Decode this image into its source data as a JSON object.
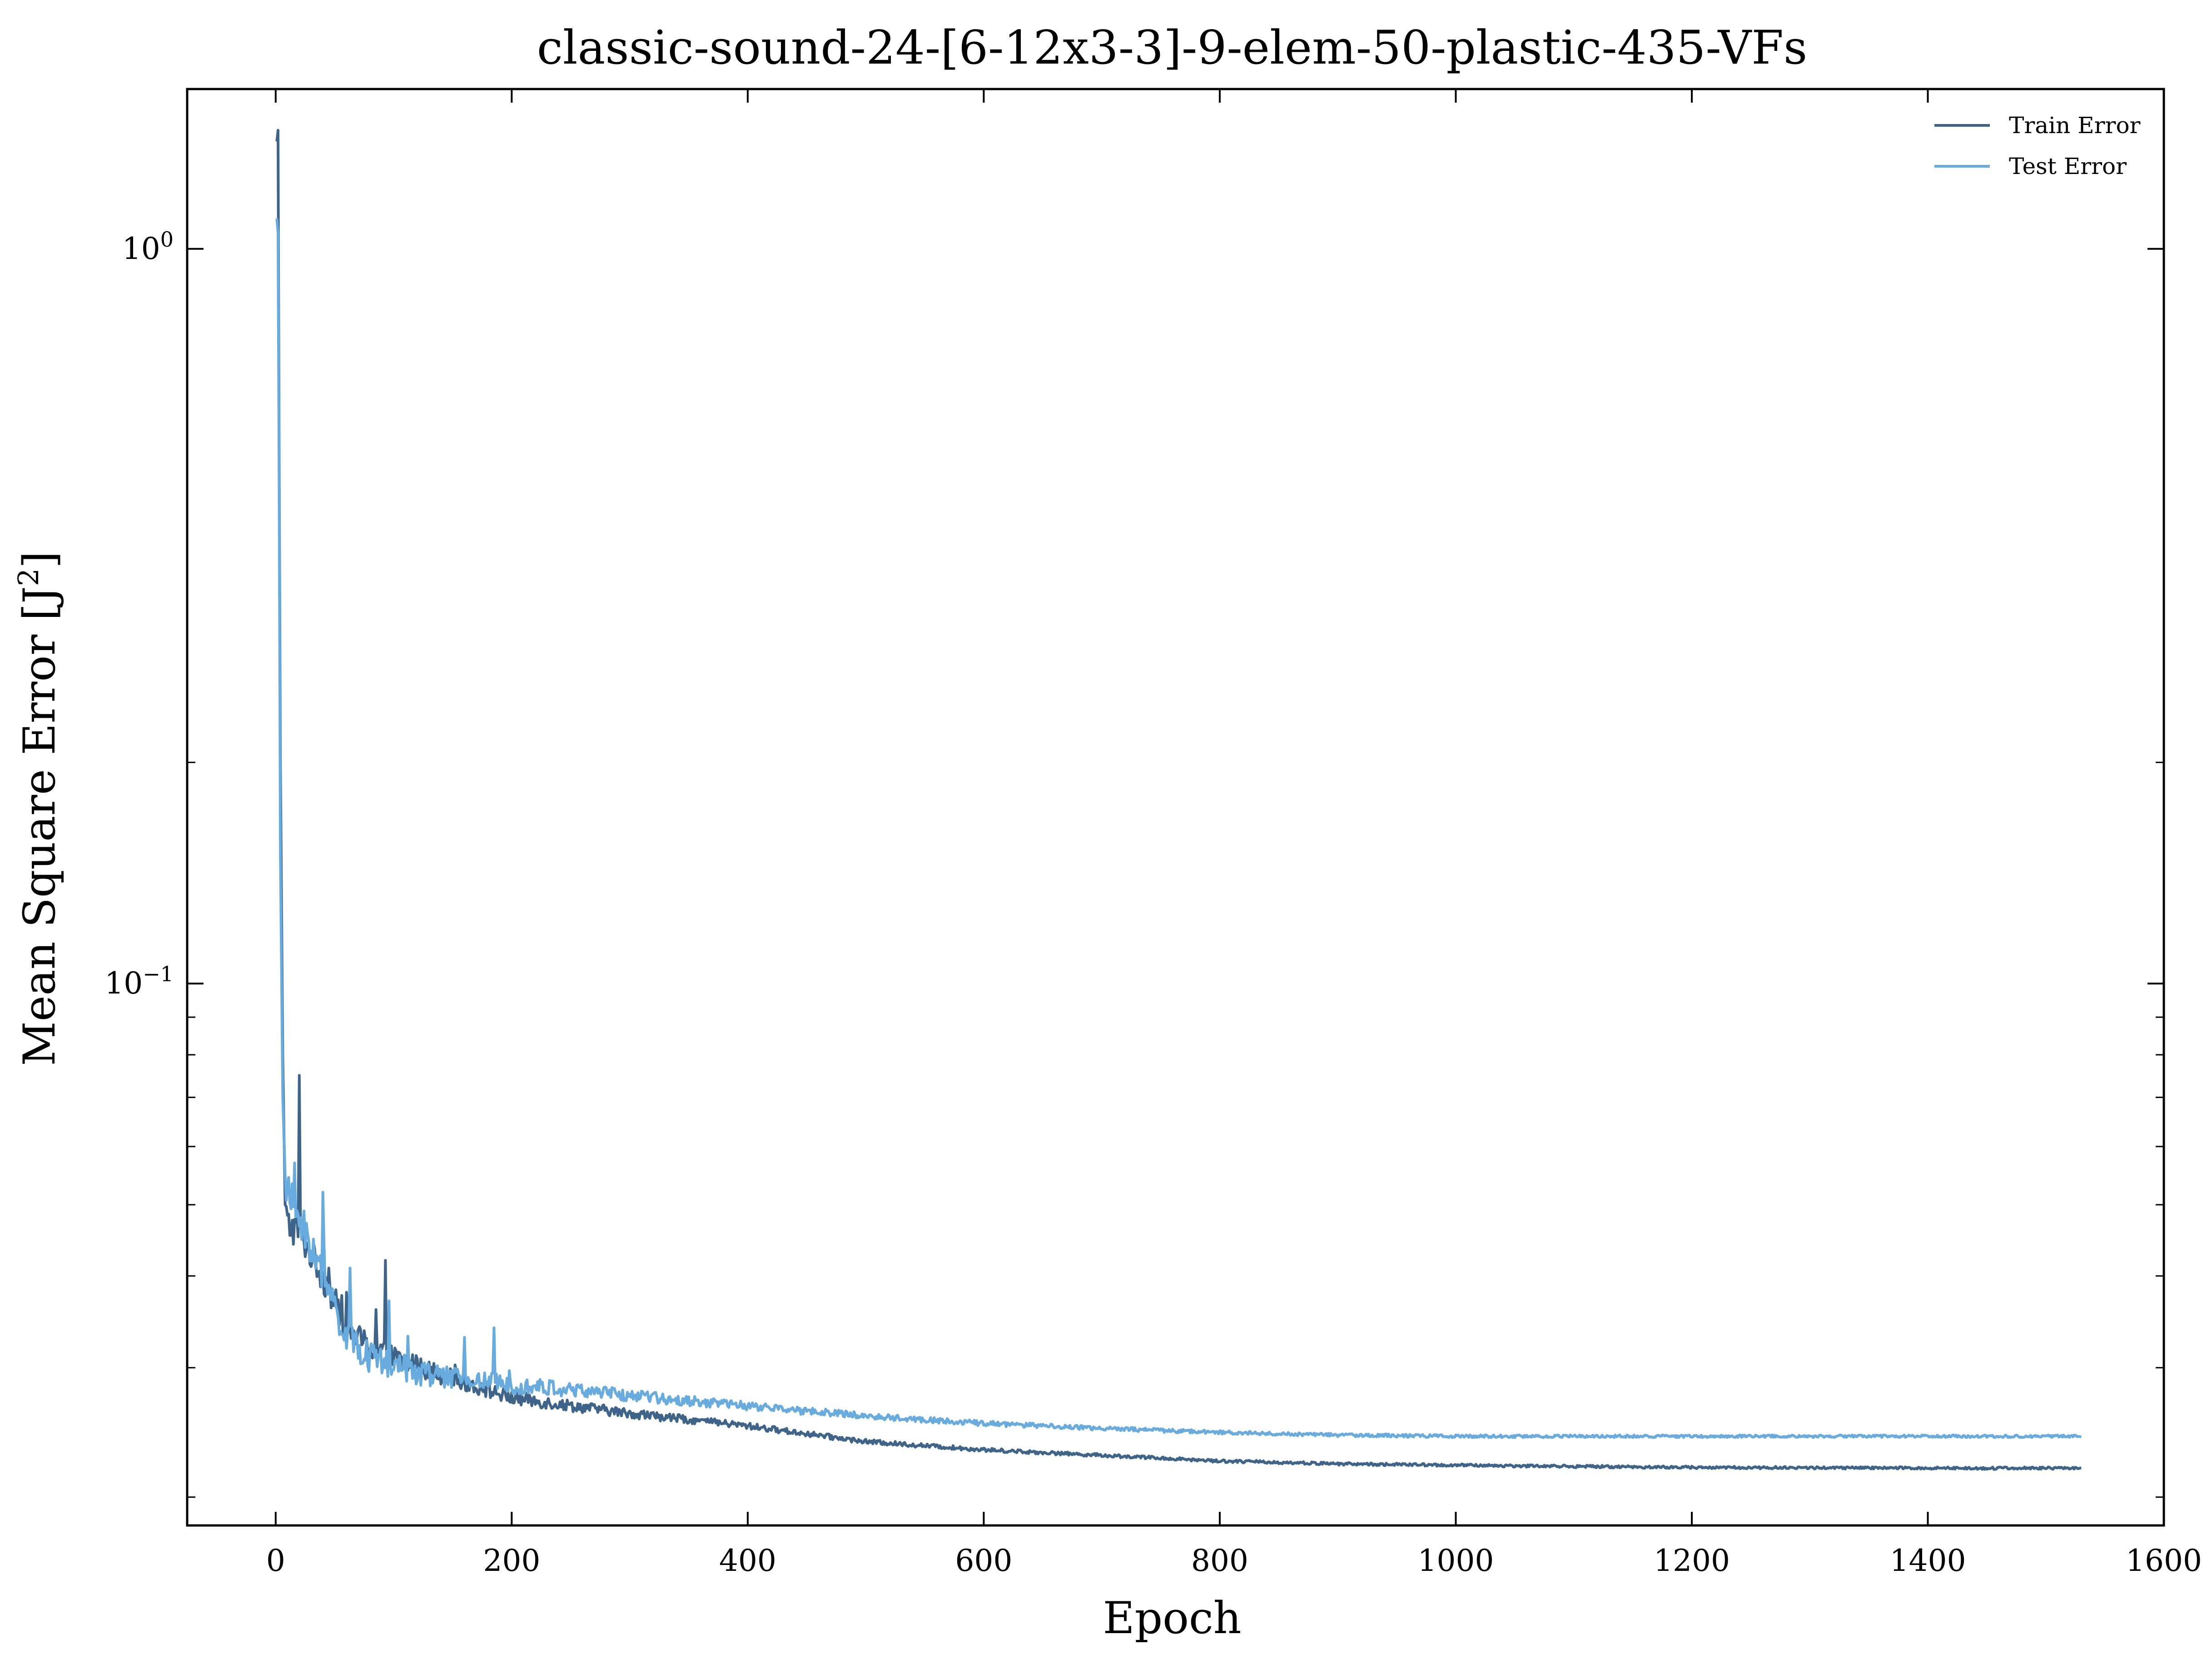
{
  "chart_data": {
    "type": "line",
    "title": "classic-sound-24-[6-12x3-3]-9-elem-50-plastic-435-VFs",
    "xlabel": "Epoch",
    "ylabel": "Mean Square Error [J²]",
    "ylabel_base": "Mean Square Error [J",
    "ylabel_sup": "2",
    "ylabel_end": "]",
    "xlim": [
      -75,
      1600
    ],
    "ylim": [
      0.0183,
      1.65
    ],
    "yscale": "log",
    "x_ticks": [
      0,
      200,
      400,
      600,
      800,
      1000,
      1200,
      1400,
      1600
    ],
    "x_tick_labels": [
      "0",
      "200",
      "400",
      "600",
      "800",
      "1000",
      "1200",
      "1400",
      "1600"
    ],
    "y_ticks": [
      {
        "value": 1.0,
        "base": "10",
        "exp": "0"
      },
      {
        "value": 0.1,
        "base": "10",
        "exp": "−1"
      }
    ],
    "y_minor_ticks": [
      0.02,
      0.03,
      0.04,
      0.05,
      0.06,
      0.07,
      0.08,
      0.09,
      0.2
    ],
    "legend_position": "top-right",
    "grid": false,
    "colors": {
      "train": "#3e6589",
      "test": "#68abdf",
      "axes": "#000000"
    },
    "series": [
      {
        "name": "Train Error",
        "color": "#3e6589",
        "noise": 0.055,
        "noise_decay": 180,
        "spikes": [
          [
            20,
            0.075
          ],
          [
            93,
            0.042
          ],
          [
            85,
            0.036
          ],
          [
            60,
            0.038
          ],
          [
            45,
            0.041
          ]
        ],
        "anchors": [
          [
            1,
            1.4
          ],
          [
            2,
            1.45
          ],
          [
            3,
            0.5
          ],
          [
            4,
            0.2
          ],
          [
            6,
            0.08
          ],
          [
            8,
            0.05
          ],
          [
            10,
            0.047
          ],
          [
            20,
            0.046
          ],
          [
            40,
            0.04
          ],
          [
            60,
            0.034
          ],
          [
            80,
            0.032
          ],
          [
            100,
            0.031
          ],
          [
            150,
            0.029
          ],
          [
            200,
            0.0273
          ],
          [
            300,
            0.026
          ],
          [
            400,
            0.025
          ],
          [
            500,
            0.0238
          ],
          [
            600,
            0.0232
          ],
          [
            700,
            0.0228
          ],
          [
            800,
            0.0224
          ],
          [
            900,
            0.0222
          ],
          [
            1000,
            0.0221
          ],
          [
            1200,
            0.02195
          ],
          [
            1400,
            0.0219
          ],
          [
            1530,
            0.0219
          ]
        ]
      },
      {
        "name": "Test Error",
        "color": "#68abdf",
        "noise": 0.06,
        "noise_decay": 220,
        "spikes": [
          [
            16,
            0.057
          ],
          [
            40,
            0.052
          ],
          [
            63,
            0.041
          ],
          [
            96,
            0.037
          ],
          [
            185,
            0.034
          ],
          [
            160,
            0.033
          ]
        ],
        "anchors": [
          [
            1,
            1.1
          ],
          [
            2,
            1.05
          ],
          [
            3,
            0.45
          ],
          [
            4,
            0.15
          ],
          [
            6,
            0.07
          ],
          [
            8,
            0.055
          ],
          [
            10,
            0.052
          ],
          [
            20,
            0.048
          ],
          [
            40,
            0.04
          ],
          [
            60,
            0.033
          ],
          [
            80,
            0.031
          ],
          [
            100,
            0.03
          ],
          [
            150,
            0.029
          ],
          [
            200,
            0.0285
          ],
          [
            300,
            0.0275
          ],
          [
            400,
            0.0266
          ],
          [
            500,
            0.0258
          ],
          [
            600,
            0.0252
          ],
          [
            700,
            0.0248
          ],
          [
            800,
            0.0245
          ],
          [
            900,
            0.0243
          ],
          [
            1000,
            0.0242
          ],
          [
            1200,
            0.0242
          ],
          [
            1400,
            0.0242
          ],
          [
            1530,
            0.0242
          ]
        ]
      }
    ]
  }
}
